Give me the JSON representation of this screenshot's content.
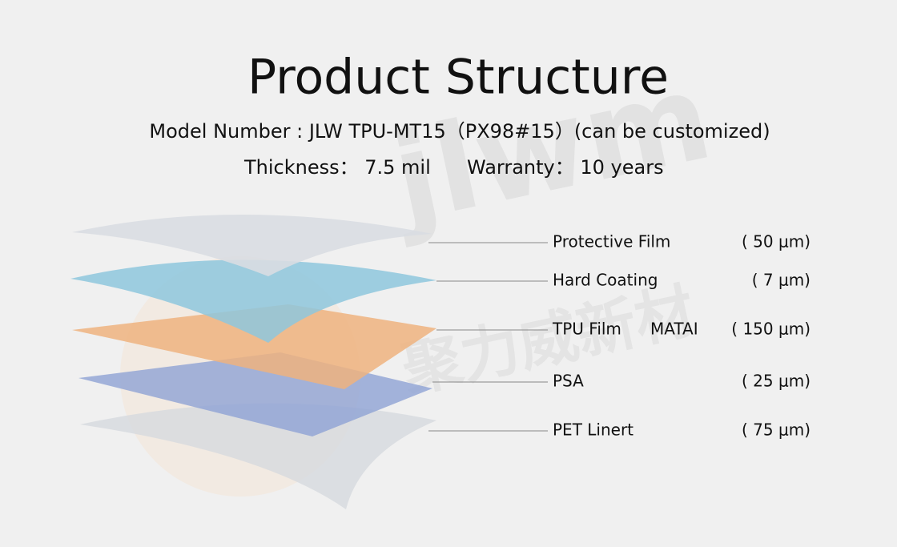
{
  "header": {
    "title": "Product Structure",
    "model": "Model Number : JLW TPU-MT15（PX98#15）(can be customized)",
    "thickness": "Thickness： 7.5 mil",
    "warranty": "Warranty： 10 years"
  },
  "watermark": {
    "logo": "jlwm",
    "name": "聚力威新材"
  },
  "layers": [
    {
      "name": "Protective Film",
      "thickness": "( 50 μm)"
    },
    {
      "name": "Hard Coating",
      "thickness": "( 7 μm)"
    },
    {
      "name": "TPU Film",
      "material": "MATAI",
      "thickness": "( 150 μm)"
    },
    {
      "name": "PSA",
      "thickness": "( 25 μm)"
    },
    {
      "name": "PET Linert",
      "thickness": "( 75 μm)"
    }
  ]
}
